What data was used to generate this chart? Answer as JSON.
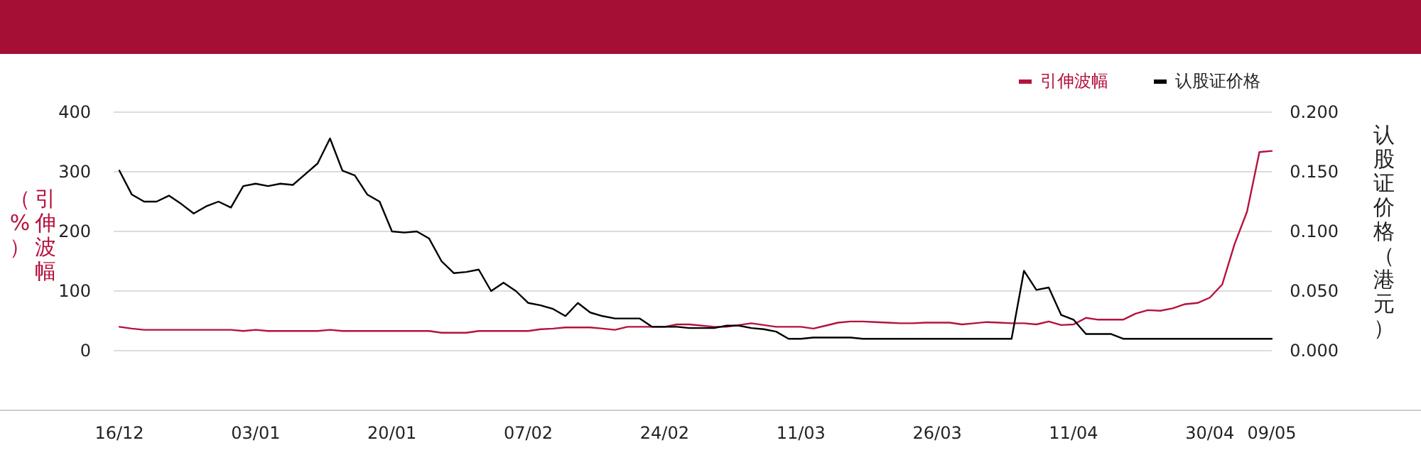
{
  "chart_data": {
    "type": "line",
    "categories": [
      "16/12",
      null,
      null,
      null,
      null,
      null,
      null,
      null,
      null,
      null,
      null,
      "03/01",
      null,
      null,
      null,
      null,
      null,
      null,
      null,
      null,
      null,
      null,
      "20/01",
      null,
      null,
      null,
      null,
      null,
      null,
      null,
      null,
      null,
      null,
      "07/02",
      null,
      null,
      null,
      null,
      null,
      null,
      null,
      null,
      null,
      null,
      "24/02",
      null,
      null,
      null,
      null,
      null,
      null,
      null,
      null,
      null,
      null,
      "11/03",
      null,
      null,
      null,
      null,
      null,
      null,
      null,
      null,
      null,
      null,
      "26/03",
      null,
      null,
      null,
      null,
      null,
      null,
      null,
      null,
      null,
      null,
      "11/04",
      null,
      null,
      null,
      null,
      null,
      null,
      null,
      null,
      null,
      null,
      "30/04",
      null,
      null,
      null,
      null,
      "09/05"
    ],
    "series": [
      {
        "name": "引伸波幅",
        "color": "#b5123e",
        "values": [
          40,
          37,
          35,
          35,
          35,
          35,
          35,
          35,
          35,
          35,
          33,
          35,
          33,
          33,
          33,
          33,
          33,
          35,
          33,
          33,
          33,
          33,
          33,
          33,
          33,
          33,
          30,
          30,
          30,
          33,
          33,
          33,
          33,
          33,
          36,
          37,
          39,
          39,
          39,
          37,
          35,
          40,
          40,
          40,
          40,
          44,
          44,
          42,
          40,
          40,
          43,
          46,
          43,
          40,
          40,
          40,
          37,
          42,
          47,
          49,
          49,
          48,
          47,
          46,
          46,
          47,
          47,
          47,
          44,
          46,
          48,
          47,
          46,
          46,
          44,
          49,
          43,
          44,
          55,
          52,
          52,
          52,
          62,
          68,
          67,
          71,
          78,
          80,
          89,
          111,
          179,
          233,
          333,
          335
        ]
      },
      {
        "name": "认股证价格",
        "color": "#000000",
        "axis": "y2",
        "values": [
          0.151,
          0.131,
          0.125,
          0.125,
          0.13,
          0.123,
          0.115,
          0.121,
          0.125,
          0.12,
          0.138,
          0.14,
          0.138,
          0.14,
          0.139,
          0.148,
          0.157,
          0.178,
          0.151,
          0.147,
          0.131,
          0.125,
          0.1,
          0.099,
          0.1,
          0.094,
          0.075,
          0.065,
          0.066,
          0.068,
          0.05,
          0.057,
          0.05,
          0.04,
          0.038,
          0.035,
          0.029,
          0.04,
          0.032,
          0.029,
          0.027,
          0.027,
          0.027,
          0.02,
          0.02,
          0.02,
          0.019,
          0.019,
          0.019,
          0.021,
          0.021,
          0.019,
          0.018,
          0.016,
          0.01,
          0.01,
          0.011,
          0.011,
          0.011,
          0.011,
          0.01,
          0.01,
          0.01,
          0.01,
          0.01,
          0.01,
          0.01,
          0.01,
          0.01,
          0.01,
          0.01,
          0.01,
          0.01,
          0.067,
          0.051,
          0.053,
          0.03,
          0.026,
          0.014,
          0.014,
          0.014,
          0.01,
          0.01,
          0.01,
          0.01,
          0.01,
          0.01,
          0.01,
          0.01,
          0.01,
          0.01,
          0.01,
          0.01,
          0.01
        ]
      }
    ],
    "ylabel": "引伸波幅（%）",
    "y2label": "认股证价格（港元）",
    "ylim": [
      -100,
      400
    ],
    "yticks": [
      0,
      100,
      200,
      300,
      400
    ],
    "y2lim": [
      -0.05,
      0.2
    ],
    "y2ticks": [
      {
        "value": 0,
        "label": "0.000"
      },
      {
        "value": 0.05,
        "label": "0.050"
      },
      {
        "value": 0.1,
        "label": "0.100"
      },
      {
        "value": 0.15,
        "label": "0.150"
      },
      {
        "value": 0.2,
        "label": "0.200"
      }
    ],
    "grid": "y",
    "legend": "top right",
    "marker": "none",
    "line_style": "solid"
  }
}
